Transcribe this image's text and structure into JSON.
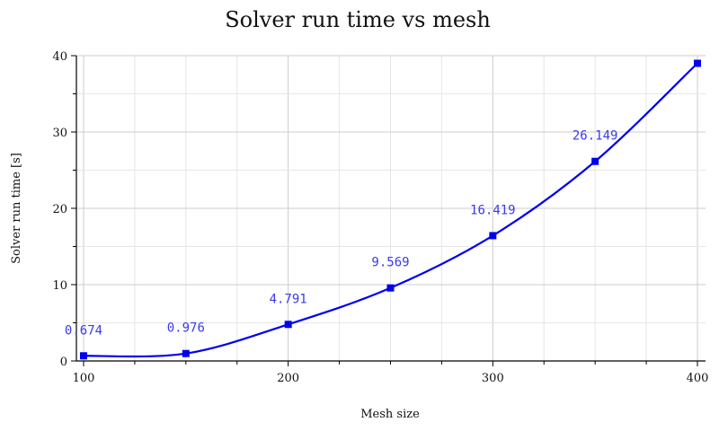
{
  "chart_data": {
    "type": "line",
    "title": "Solver run time vs mesh",
    "xlabel": "Mesh size",
    "ylabel": "Solver run time [s]",
    "xlim": [
      100,
      400
    ],
    "ylim": [
      0,
      40
    ],
    "x_ticks": [
      100,
      200,
      300,
      400
    ],
    "y_ticks": [
      0,
      10,
      20,
      30,
      40
    ],
    "grid": true,
    "legend": "none",
    "smooth": true,
    "series": [
      {
        "color": "#0000ee",
        "marker": "square",
        "x": [
          100,
          150,
          200,
          250,
          300,
          350,
          400
        ],
        "values": [
          0.674,
          0.976,
          4.791,
          9.569,
          16.419,
          26.149,
          39.0
        ],
        "labels": [
          "0.674",
          "0.976",
          "4.791",
          "9.569",
          "16.419",
          "26.149",
          ""
        ]
      }
    ],
    "colors": {
      "label": "#3a3aee",
      "grid": "#dddddd",
      "axis": "#000000"
    }
  }
}
